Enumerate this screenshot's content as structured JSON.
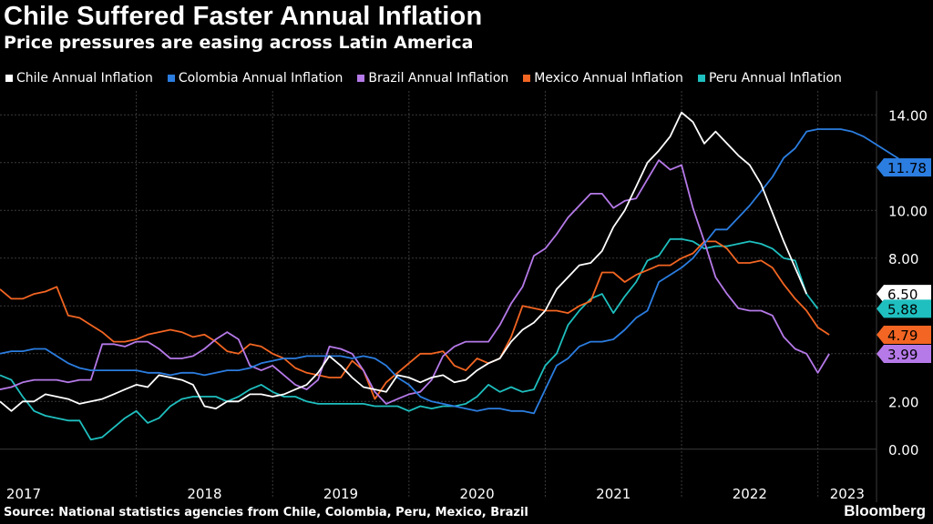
{
  "header": {
    "title": "Chile Suffered Faster Annual Inflation",
    "subtitle": "Price pressures are easing across Latin America"
  },
  "footer": {
    "source": "Source: National statistics agencies from Chile, Colombia, Peru, Mexico, Brazil",
    "brand": "Bloomberg"
  },
  "chart_data": {
    "type": "line",
    "title": "Chile Suffered Faster Annual Inflation",
    "subtitle": "Price pressures are easing across Latin America",
    "xlabel": "",
    "ylabel": "",
    "ylim": [
      -1,
      15
    ],
    "yticks": [
      0,
      2,
      4,
      6,
      8,
      10,
      12,
      14
    ],
    "ytick_labels": [
      "0.00",
      "2.00",
      "4.00",
      "6.00",
      "8.00",
      "10.00",
      "12.00",
      "14.00"
    ],
    "x_start": 2017.0,
    "x_step": 0.08333,
    "x_tick_labels": [
      "2017",
      "2018",
      "2019",
      "2020",
      "2021",
      "2022",
      "2023"
    ],
    "grid": true,
    "legend_position": "top",
    "series": [
      {
        "name": "Chile Annual Inflation",
        "color": "#ffffff",
        "last_label": "6.50",
        "values": [
          2.0,
          1.6,
          2.0,
          2.0,
          2.3,
          2.2,
          2.1,
          1.9,
          2.0,
          2.1,
          2.3,
          2.5,
          2.7,
          2.6,
          3.1,
          3.0,
          2.9,
          2.7,
          1.8,
          1.7,
          2.0,
          2.0,
          2.3,
          2.3,
          2.2,
          2.3,
          2.5,
          2.7,
          3.2,
          3.9,
          3.5,
          3.0,
          2.6,
          2.5,
          2.4,
          3.1,
          3.0,
          2.8,
          3.0,
          3.1,
          2.8,
          2.9,
          3.3,
          3.6,
          3.8,
          4.5,
          5.0,
          5.3,
          5.8,
          6.7,
          7.2,
          7.7,
          7.8,
          8.3,
          9.3,
          10.0,
          11.0,
          12.0,
          12.5,
          13.1,
          14.1,
          13.7,
          12.8,
          13.3,
          12.8,
          12.3,
          11.9,
          11.1,
          9.9,
          8.7,
          7.6,
          6.5
        ]
      },
      {
        "name": "Colombia Annual Inflation",
        "color": "#2b7de0",
        "last_label": "11.78",
        "values": [
          4.0,
          4.1,
          4.1,
          4.2,
          4.2,
          3.9,
          3.6,
          3.4,
          3.3,
          3.3,
          3.3,
          3.3,
          3.3,
          3.2,
          3.2,
          3.1,
          3.2,
          3.2,
          3.1,
          3.2,
          3.3,
          3.3,
          3.4,
          3.6,
          3.7,
          3.8,
          3.8,
          3.9,
          3.9,
          3.9,
          3.9,
          3.8,
          3.9,
          3.8,
          3.5,
          3.0,
          2.7,
          2.2,
          2.0,
          1.9,
          1.8,
          1.7,
          1.6,
          1.7,
          1.7,
          1.6,
          1.6,
          1.5,
          2.5,
          3.5,
          3.8,
          4.3,
          4.5,
          4.5,
          4.6,
          5.0,
          5.5,
          5.8,
          7.0,
          7.3,
          7.6,
          8.0,
          8.6,
          9.2,
          9.2,
          9.7,
          10.2,
          10.8,
          11.4,
          12.2,
          12.6,
          13.3,
          13.4,
          13.4,
          13.4,
          13.3,
          13.1,
          12.8,
          12.5,
          12.2,
          11.8,
          11.8
        ]
      },
      {
        "name": "Brazil Annual Inflation",
        "color": "#b579e8",
        "last_label": "3.99",
        "values": [
          2.5,
          2.6,
          2.8,
          2.9,
          2.9,
          2.9,
          2.8,
          2.9,
          2.9,
          4.4,
          4.4,
          4.3,
          4.5,
          4.5,
          4.2,
          3.8,
          3.8,
          3.9,
          4.2,
          4.6,
          4.9,
          4.6,
          3.5,
          3.3,
          3.5,
          3.1,
          2.7,
          2.5,
          2.9,
          4.3,
          4.2,
          4.0,
          3.3,
          2.4,
          1.9,
          2.1,
          2.3,
          2.4,
          2.9,
          3.9,
          4.3,
          4.5,
          4.5,
          4.5,
          5.2,
          6.1,
          6.8,
          8.1,
          8.4,
          9.0,
          9.7,
          10.2,
          10.7,
          10.7,
          10.1,
          10.4,
          10.5,
          11.3,
          12.1,
          11.7,
          11.9,
          10.1,
          8.7,
          7.2,
          6.5,
          5.9,
          5.8,
          5.8,
          5.6,
          4.7,
          4.2,
          4.0,
          3.2,
          3.99
        ]
      },
      {
        "name": "Mexico Annual Inflation",
        "color": "#f26522",
        "last_label": "4.79",
        "values": [
          6.7,
          6.3,
          6.3,
          6.5,
          6.6,
          6.8,
          5.6,
          5.5,
          5.2,
          4.9,
          4.5,
          4.5,
          4.6,
          4.8,
          4.9,
          5.0,
          4.9,
          4.7,
          4.8,
          4.5,
          4.1,
          4.0,
          4.4,
          4.3,
          4.0,
          3.8,
          3.4,
          3.2,
          3.1,
          3.0,
          3.0,
          3.7,
          3.3,
          2.1,
          2.8,
          3.2,
          3.6,
          4.0,
          4.0,
          4.1,
          3.5,
          3.3,
          3.8,
          3.6,
          3.8,
          4.7,
          6.0,
          5.9,
          5.8,
          5.8,
          5.7,
          6.0,
          6.2,
          7.4,
          7.4,
          7.0,
          7.3,
          7.5,
          7.7,
          7.7,
          8.0,
          8.2,
          8.7,
          8.7,
          8.4,
          7.8,
          7.8,
          7.9,
          7.6,
          6.9,
          6.3,
          5.8,
          5.1,
          4.79
        ]
      },
      {
        "name": "Peru Annual Inflation",
        "color": "#1fbfbf",
        "last_label": "5.88",
        "values": [
          3.1,
          2.9,
          2.2,
          1.6,
          1.4,
          1.3,
          1.2,
          1.2,
          0.4,
          0.5,
          0.9,
          1.3,
          1.6,
          1.1,
          1.3,
          1.8,
          2.1,
          2.2,
          2.2,
          2.2,
          2.0,
          2.2,
          2.5,
          2.7,
          2.4,
          2.2,
          2.2,
          2.0,
          1.9,
          1.9,
          1.9,
          1.9,
          1.9,
          1.8,
          1.8,
          1.8,
          1.6,
          1.8,
          1.7,
          1.8,
          1.8,
          1.9,
          2.2,
          2.7,
          2.4,
          2.6,
          2.4,
          2.5,
          3.5,
          4.0,
          5.2,
          5.8,
          6.3,
          6.5,
          5.7,
          6.4,
          7.0,
          7.9,
          8.1,
          8.8,
          8.8,
          8.7,
          8.4,
          8.5,
          8.5,
          8.6,
          8.7,
          8.6,
          8.4,
          8.0,
          7.9,
          6.5,
          5.88
        ]
      }
    ]
  }
}
